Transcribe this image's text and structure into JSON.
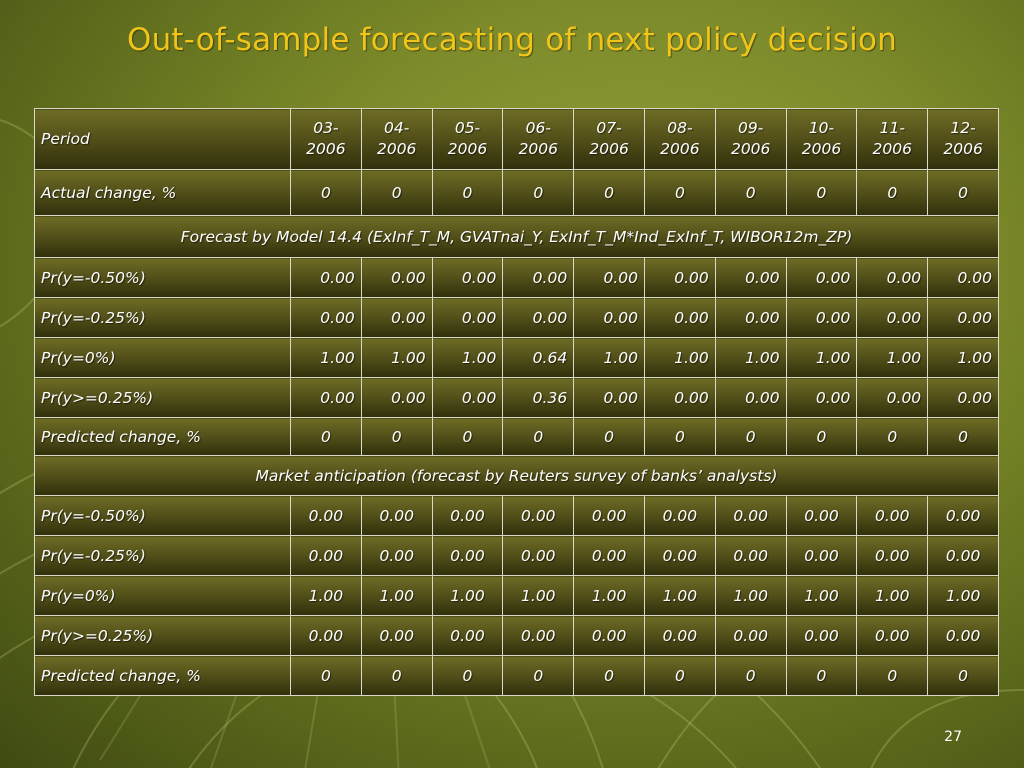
{
  "slide": {
    "title": "Out-of-sample forecasting of next policy decision",
    "page_number": "27"
  },
  "table": {
    "header_label": "Period",
    "periods": [
      {
        "top": "03-",
        "bottom": "2006"
      },
      {
        "top": "04-",
        "bottom": "2006"
      },
      {
        "top": "05-",
        "bottom": "2006"
      },
      {
        "top": "06-",
        "bottom": "2006"
      },
      {
        "top": "07-",
        "bottom": "2006"
      },
      {
        "top": "08-",
        "bottom": "2006"
      },
      {
        "top": "09-",
        "bottom": "2006"
      },
      {
        "top": "10-",
        "bottom": "2006"
      },
      {
        "top": "11-",
        "bottom": "2006"
      },
      {
        "top": "12-",
        "bottom": "2006"
      }
    ],
    "actual": {
      "label": "Actual change, %",
      "values": [
        "0",
        "0",
        "0",
        "0",
        "0",
        "0",
        "0",
        "0",
        "0",
        "0"
      ]
    },
    "model_section": {
      "title": "Forecast  by Model 14.4 (ExInf_T_M, GVATnai_Y, ExInf_T_M*Ind_ExInf_T, WIBOR12m_ZP)",
      "rows": [
        {
          "label": "Pr(y=-0.50%)",
          "values": [
            "0.00",
            "0.00",
            "0.00",
            "0.00",
            "0.00",
            "0.00",
            "0.00",
            "0.00",
            "0.00",
            "0.00"
          ]
        },
        {
          "label": "Pr(y=-0.25%)",
          "values": [
            "0.00",
            "0.00",
            "0.00",
            "0.00",
            "0.00",
            "0.00",
            "0.00",
            "0.00",
            "0.00",
            "0.00"
          ]
        },
        {
          "label": "Pr(y=0%)",
          "values": [
            "1.00",
            "1.00",
            "1.00",
            "0.64",
            "1.00",
            "1.00",
            "1.00",
            "1.00",
            "1.00",
            "1.00"
          ]
        },
        {
          "label": "Pr(y>=0.25%)",
          "values": [
            "0.00",
            "0.00",
            "0.00",
            "0.36",
            "0.00",
            "0.00",
            "0.00",
            "0.00",
            "0.00",
            "0.00"
          ]
        }
      ],
      "predicted": {
        "label": "Predicted change, %",
        "values": [
          "0",
          "0",
          "0",
          "0",
          "0",
          "0",
          "0",
          "0",
          "0",
          "0"
        ]
      }
    },
    "market_section": {
      "title": "Market anticipation (forecast by Reuters survey of banks’ analysts)",
      "rows": [
        {
          "label": "Pr(y=-0.50%)",
          "values": [
            "0.00",
            "0.00",
            "0.00",
            "0.00",
            "0.00",
            "0.00",
            "0.00",
            "0.00",
            "0.00",
            "0.00"
          ]
        },
        {
          "label": "Pr(y=-0.25%)",
          "values": [
            "0.00",
            "0.00",
            "0.00",
            "0.00",
            "0.00",
            "0.00",
            "0.00",
            "0.00",
            "0.00",
            "0.00"
          ]
        },
        {
          "label": "Pr(y=0%)",
          "values": [
            "1.00",
            "1.00",
            "1.00",
            "1.00",
            "1.00",
            "1.00",
            "1.00",
            "1.00",
            "1.00",
            "1.00"
          ]
        },
        {
          "label": "Pr(y>=0.25%)",
          "values": [
            "0.00",
            "0.00",
            "0.00",
            "0.00",
            "0.00",
            "0.00",
            "0.00",
            "0.00",
            "0.00",
            "0.00"
          ]
        }
      ],
      "predicted": {
        "label": "Predicted change, %",
        "values": [
          "0",
          "0",
          "0",
          "0",
          "0",
          "0",
          "0",
          "0",
          "0",
          "0"
        ]
      }
    }
  },
  "colors": {
    "title": "#f0c419",
    "highlight_text": "#f0c419",
    "cell_text": "#ffffff",
    "cell_border": "#d9d9c8",
    "background": "#7c8a2a"
  }
}
